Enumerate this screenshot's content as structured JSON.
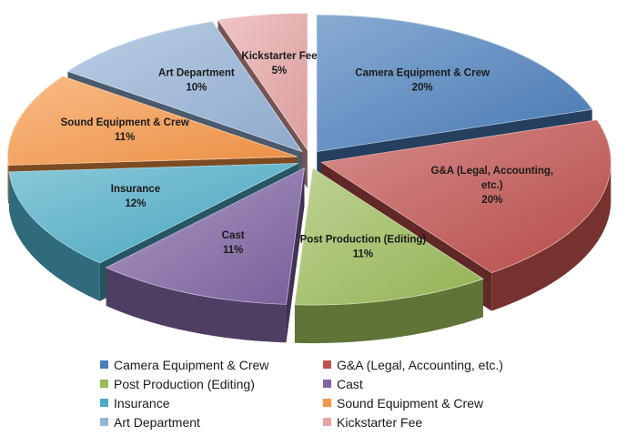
{
  "chart_data": {
    "type": "pie",
    "style": "3d-exploded",
    "title": "",
    "legend_position": "bottom",
    "slices": [
      {
        "name": "Camera Equipment & Crew",
        "value": 20,
        "label_value": "20%",
        "color": "#4a7ebb"
      },
      {
        "name": "G&A (Legal, Accounting, etc.)",
        "value": 20,
        "label_value": "20%",
        "color": "#c0504d"
      },
      {
        "name": "Post Production (Editing)",
        "value": 11,
        "label_value": "11%",
        "color": "#9bbb59"
      },
      {
        "name": "Cast",
        "value": 11,
        "label_value": "11%",
        "color": "#8064a2"
      },
      {
        "name": "Insurance",
        "value": 12,
        "label_value": "12%",
        "color": "#4bacc6"
      },
      {
        "name": "Sound Equipment & Crew",
        "value": 11,
        "label_value": "11%",
        "color": "#f79646"
      },
      {
        "name": "Art Department",
        "value": 10,
        "label_value": "10%",
        "color": "#95b3d7"
      },
      {
        "name": "Kickstarter Fee",
        "value": 5,
        "label_value": "5%",
        "color": "#e6a5a5"
      }
    ]
  }
}
